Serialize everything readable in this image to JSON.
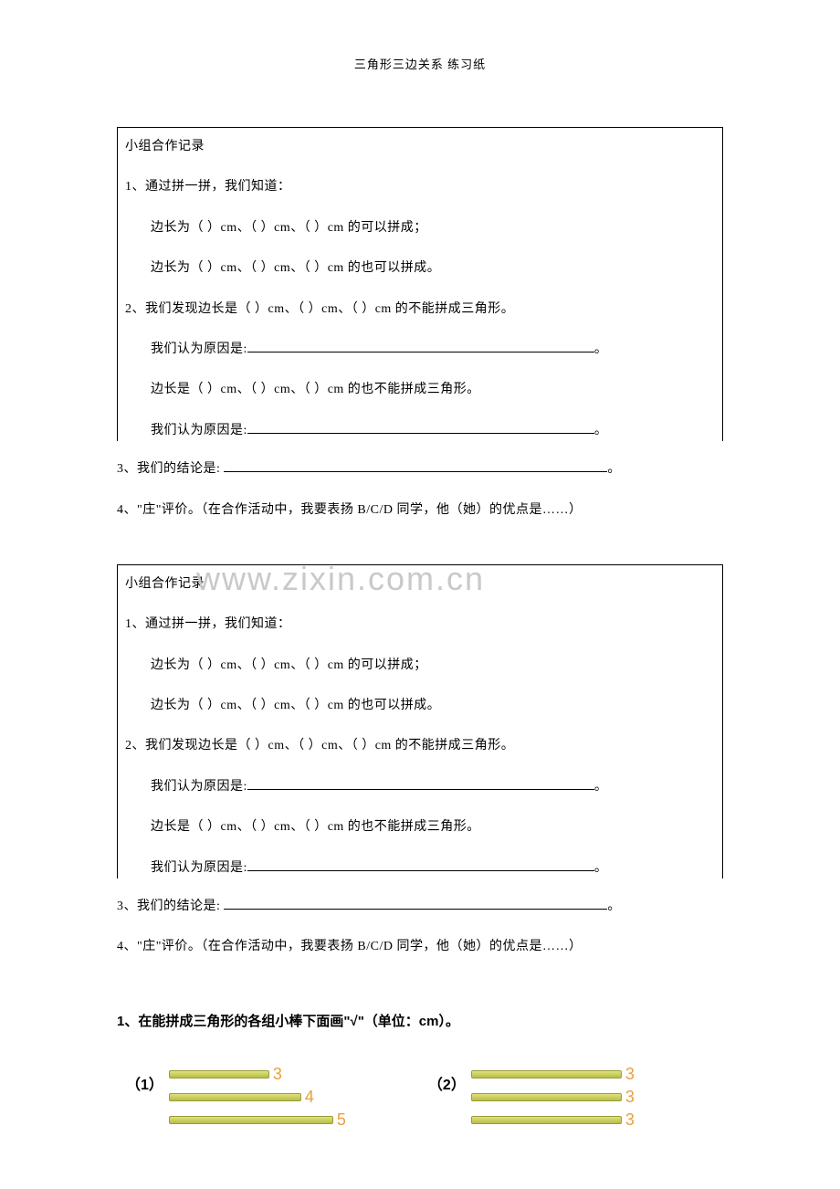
{
  "header": {
    "title": "三角形三边关系 练习纸"
  },
  "watermark": {
    "text": "www.zixin.com.cn"
  },
  "record": {
    "title": "小组合作记录",
    "q1_intro": "1、通过拼一拼，我们知道：",
    "q1_line1": "边长为（  ）cm、（  ）cm、（  ）cm 的可以拼成；",
    "q1_line2": "边长为（  ）cm、（  ）cm、（  ）cm 的也可以拼成。",
    "q2_line1": "2、我们发现边长是（  ）cm、（  ）cm、（  ）cm 的不能拼成三角形。",
    "q2_reason_label": "我们认为原因是:",
    "q2_line2": "边长是（  ）cm、（  ）cm、（  ）cm 的也不能拼成三角形。",
    "q2_reason_label2": "我们认为原因是:",
    "q3_label": "3、我们的结论是:",
    "q4": "4、\"庄\"评价。（在合作活动中，我要表扬 B/C/D 同学，他（她）的优点是……）",
    "period": "。"
  },
  "exercise": {
    "q1": "1、在能拼成三角形的各组小棒下面画\"√\"（单位：cm）。",
    "group1_label": "（1）",
    "group2_label": "（2）",
    "group1_sticks": [
      {
        "width": 110,
        "label": "3"
      },
      {
        "width": 145,
        "label": "4"
      },
      {
        "width": 180,
        "label": "5"
      }
    ],
    "group2_sticks": [
      {
        "width": 165,
        "label": "3"
      },
      {
        "width": 165,
        "label": "3"
      },
      {
        "width": 165,
        "label": "3"
      }
    ]
  },
  "colors": {
    "stick_fill": "#c5c95a",
    "stick_num": "#e8a03a",
    "watermark": "#c9c9c9"
  }
}
